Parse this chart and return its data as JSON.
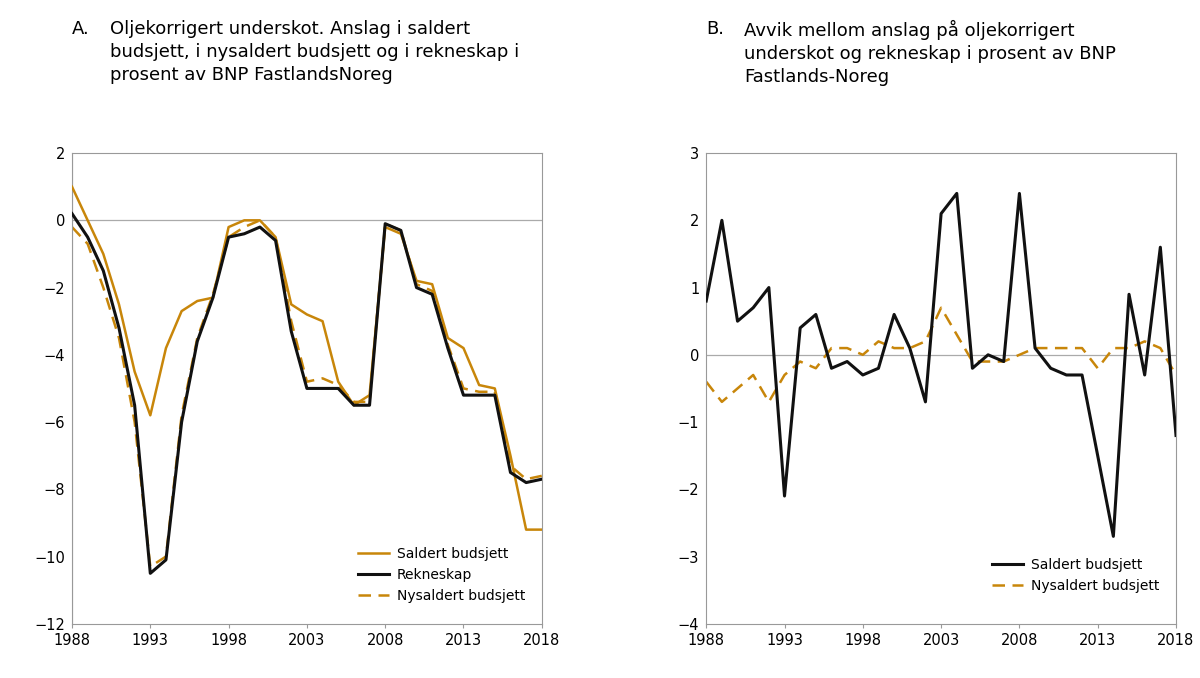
{
  "years": [
    1988,
    1989,
    1990,
    1991,
    1992,
    1993,
    1994,
    1995,
    1996,
    1997,
    1998,
    1999,
    2000,
    2001,
    2002,
    2003,
    2004,
    2005,
    2006,
    2007,
    2008,
    2009,
    2010,
    2011,
    2012,
    2013,
    2014,
    2015,
    2016,
    2017,
    2018
  ],
  "panel_a": {
    "saldert": [
      1.0,
      0.0,
      -1.0,
      -2.5,
      -4.5,
      -5.8,
      -3.8,
      -2.7,
      -2.4,
      -2.3,
      -0.2,
      0.0,
      0.0,
      -0.5,
      -2.5,
      -2.8,
      -3.0,
      -4.8,
      -5.5,
      -5.2,
      -0.2,
      -0.4,
      -1.8,
      -1.9,
      -3.5,
      -3.8,
      -4.9,
      -5.0,
      -7.0,
      -9.2,
      -9.2
    ],
    "rekneskap": [
      0.2,
      -0.5,
      -1.5,
      -3.2,
      -5.5,
      -10.5,
      -10.1,
      -6.0,
      -3.6,
      -2.3,
      -0.5,
      -0.4,
      -0.2,
      -0.6,
      -3.3,
      -5.0,
      -5.0,
      -5.0,
      -5.5,
      -5.5,
      -0.1,
      -0.3,
      -2.0,
      -2.2,
      -3.8,
      -5.2,
      -5.2,
      -5.2,
      -7.5,
      -7.8,
      -7.7
    ],
    "nysaldert": [
      -0.2,
      -0.7,
      -2.0,
      -3.5,
      -6.0,
      -10.3,
      -10.0,
      -5.8,
      -3.5,
      -2.2,
      -0.5,
      -0.2,
      0.0,
      -0.5,
      -3.0,
      -4.8,
      -4.7,
      -4.9,
      -5.4,
      -5.4,
      -0.1,
      -0.3,
      -1.9,
      -2.1,
      -3.7,
      -5.0,
      -5.1,
      -5.1,
      -7.3,
      -7.7,
      -7.6
    ]
  },
  "panel_b": {
    "saldert_avvik": [
      0.8,
      2.0,
      0.5,
      0.7,
      1.0,
      -2.1,
      0.4,
      0.6,
      -0.2,
      -0.1,
      -0.3,
      -0.2,
      0.6,
      0.1,
      -0.7,
      2.1,
      2.4,
      -0.2,
      0.0,
      -0.1,
      2.4,
      0.1,
      -0.2,
      -0.3,
      -0.3,
      -1.5,
      -2.7,
      0.9,
      -0.3,
      1.6,
      -1.2
    ],
    "nysaldert_avvik": [
      -0.4,
      -0.7,
      -0.5,
      -0.3,
      -0.7,
      -0.3,
      -0.1,
      -0.2,
      0.1,
      0.1,
      0.0,
      0.2,
      0.1,
      0.1,
      0.2,
      0.7,
      0.3,
      -0.1,
      -0.1,
      -0.1,
      0.0,
      0.1,
      0.1,
      0.1,
      0.1,
      -0.2,
      0.1,
      0.1,
      0.2,
      0.1,
      -0.3
    ]
  },
  "color_saldert": "#C8860A",
  "color_rekneskap": "#111111",
  "color_nysaldert": "#C8860A",
  "color_hline": "#aaaaaa",
  "ylim_a": [
    -12,
    2
  ],
  "ylim_b": [
    -4,
    3
  ],
  "yticks_a": [
    -12,
    -10,
    -8,
    -6,
    -4,
    -2,
    0,
    2
  ],
  "yticks_b": [
    -4,
    -3,
    -2,
    -1,
    0,
    1,
    2,
    3
  ],
  "xticks": [
    1988,
    1993,
    1998,
    2003,
    2008,
    2013,
    2018
  ],
  "title_a_prefix": "A.",
  "title_a_text": "Oljekorrigert underskot. Anslag i saldert\nbudsjett, i nysaldert budsjett og i rekneskap i\nprosent av BNP FastlandsNoreg",
  "title_b_prefix": "B.",
  "title_b_text": "Avvik mellom anslag på oljekorrigert\nunderskot og rekneskap i prosent av BNP\nFastlands-Noreg",
  "legend_a": [
    "Saldert budsjett",
    "Rekneskap",
    "Nysaldert budsjett"
  ],
  "legend_b": [
    "Saldert budsjett",
    "Nysaldert budsjett"
  ],
  "spine_color": "#999999",
  "tick_color": "#444444",
  "title_fontsize": 13,
  "tick_fontsize": 10.5
}
